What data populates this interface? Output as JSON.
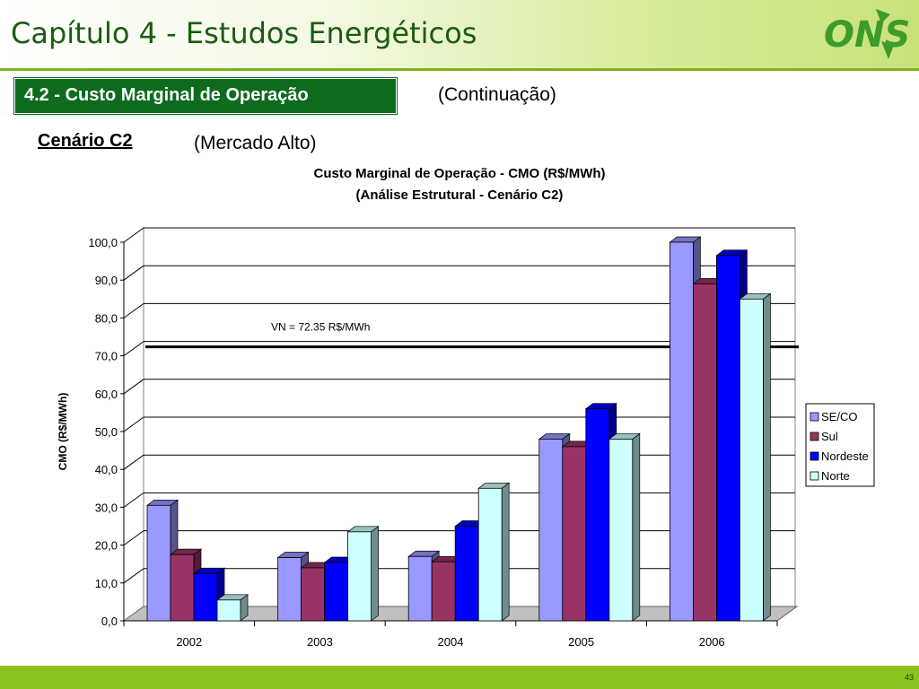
{
  "header": {
    "title": "Capítulo 4 - Estudos Energéticos",
    "logo_text": "ONS"
  },
  "section": {
    "label": "4.2 - Custo Marginal de Operação",
    "continuation": "(Continuação)"
  },
  "scenario": {
    "name": "Cenário C2",
    "market": "(Mercado Alto)"
  },
  "chart_data": {
    "type": "bar",
    "title": "Custo Marginal de Operação - CMO (R$/MWh)",
    "subtitle": "(Análise Estrutural - Cenário C2)",
    "xlabel": "",
    "ylabel": "CMO (R$/MWh)",
    "ylim": [
      0,
      100
    ],
    "yticks": [
      "0,0",
      "10,0",
      "20,0",
      "30,0",
      "40,0",
      "50,0",
      "60,0",
      "70,0",
      "80,0",
      "90,0",
      "100,0"
    ],
    "categories": [
      "2002",
      "2003",
      "2004",
      "2005",
      "2006"
    ],
    "series": [
      {
        "name": "SE/CO",
        "color": "#9999ff",
        "values": [
          30.5,
          16.7,
          17.0,
          48.0,
          100.0
        ]
      },
      {
        "name": "Sul",
        "color": "#993366",
        "values": [
          17.5,
          14.0,
          15.6,
          46.0,
          89.0
        ]
      },
      {
        "name": "Nordeste",
        "color": "#0000ff",
        "values": [
          12.5,
          15.4,
          25.0,
          56.0,
          96.5
        ]
      },
      {
        "name": "Norte",
        "color": "#ccffff",
        "values": [
          5.5,
          23.5,
          35.0,
          48.0,
          85.0
        ]
      }
    ],
    "reference_line": {
      "label": "VN = 72.35 R$/MWh",
      "value": 72.35
    },
    "grid": true,
    "legend_position": "right",
    "style": "3d-clustered"
  },
  "footer": {
    "page_number": "43"
  }
}
